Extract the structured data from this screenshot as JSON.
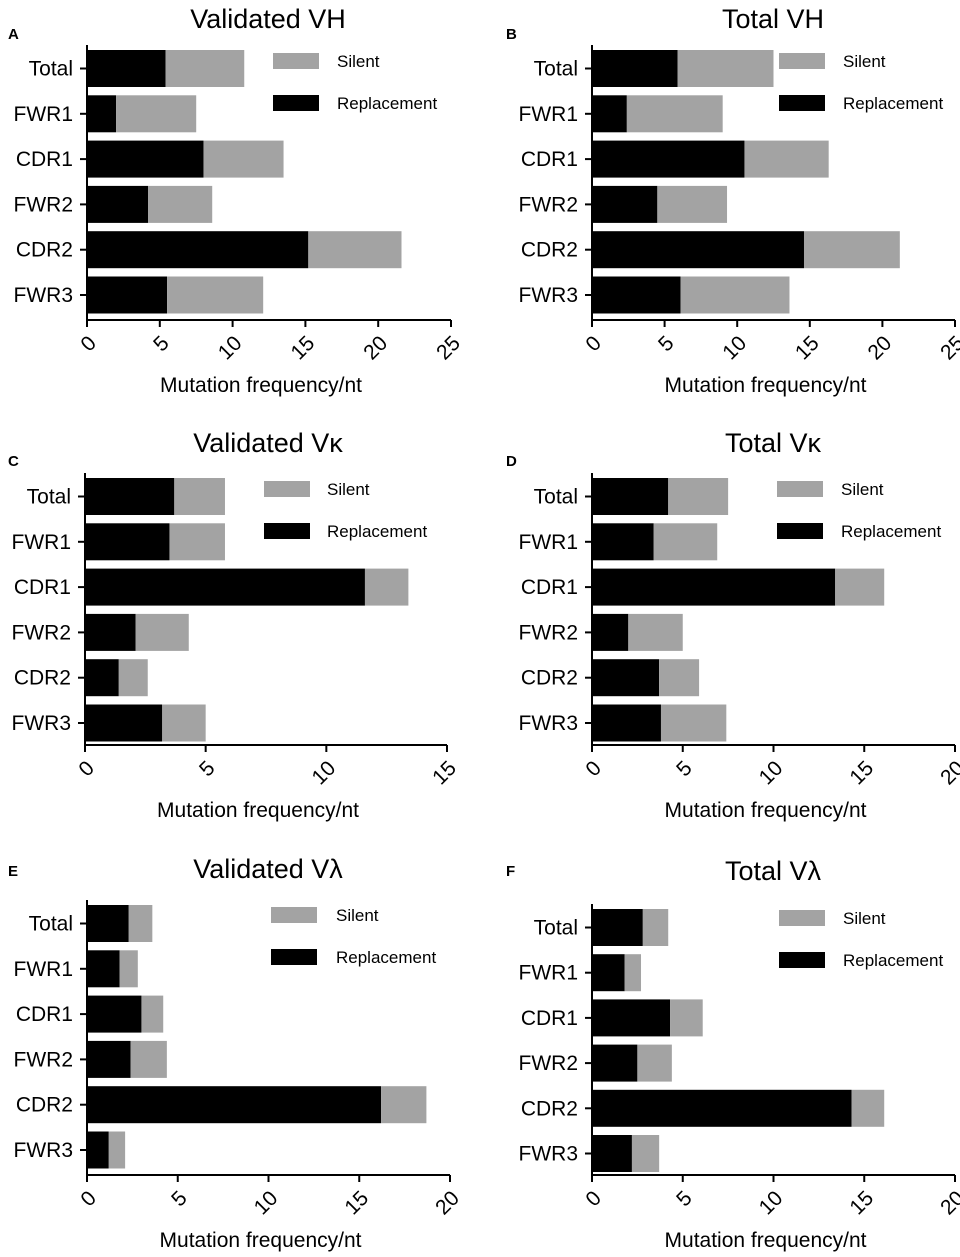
{
  "colors": {
    "replacement": "#000000",
    "silent": "#a3a3a3"
  },
  "legend": {
    "silent": "Silent",
    "replacement": "Replacement"
  },
  "chart_data": [
    {
      "panel": "A",
      "type": "bar",
      "stacked": true,
      "orientation": "horizontal",
      "title": "Validated VH",
      "xlabel": "Mutation frequency/nt",
      "ylabel": "",
      "categories": [
        "Total",
        "FWR1",
        "CDR1",
        "FWR2",
        "CDR2",
        "FWR3"
      ],
      "series": [
        {
          "name": "Replacement",
          "values": [
            5.4,
            2.0,
            8.0,
            4.2,
            15.2,
            5.5
          ]
        },
        {
          "name": "Silent",
          "values": [
            5.4,
            5.5,
            5.5,
            4.4,
            6.4,
            6.6
          ]
        }
      ],
      "xlim": [
        0,
        25
      ],
      "xticks": [
        0,
        5,
        10,
        15,
        20,
        25
      ],
      "grid": false
    },
    {
      "panel": "B",
      "type": "bar",
      "stacked": true,
      "orientation": "horizontal",
      "title": "Total VH",
      "xlabel": "Mutation frequency/nt",
      "ylabel": "",
      "categories": [
        "Total",
        "FWR1",
        "CDR1",
        "FWR2",
        "CDR2",
        "FWR3"
      ],
      "series": [
        {
          "name": "Replacement",
          "values": [
            5.9,
            2.4,
            10.5,
            4.5,
            14.6,
            6.1
          ]
        },
        {
          "name": "Silent",
          "values": [
            6.6,
            6.6,
            5.8,
            4.8,
            6.6,
            7.5
          ]
        }
      ],
      "xlim": [
        0,
        25
      ],
      "xticks": [
        0,
        5,
        10,
        15,
        20,
        25
      ],
      "grid": false
    },
    {
      "panel": "C",
      "type": "bar",
      "stacked": true,
      "orientation": "horizontal",
      "title": "Validated Vκ",
      "xlabel": "Mutation frequency/nt",
      "ylabel": "",
      "categories": [
        "Total",
        "FWR1",
        "CDR1",
        "FWR2",
        "CDR2",
        "FWR3"
      ],
      "series": [
        {
          "name": "Replacement",
          "values": [
            3.7,
            3.5,
            11.6,
            2.1,
            1.4,
            3.2
          ]
        },
        {
          "name": "Silent",
          "values": [
            2.1,
            2.3,
            1.8,
            2.2,
            1.2,
            1.8
          ]
        }
      ],
      "xlim": [
        0,
        15
      ],
      "xticks": [
        0,
        5,
        10,
        15
      ],
      "grid": false
    },
    {
      "panel": "D",
      "type": "bar",
      "stacked": true,
      "orientation": "horizontal",
      "title": "Total Vκ",
      "xlabel": "Mutation frequency/nt",
      "ylabel": "",
      "categories": [
        "Total",
        "FWR1",
        "CDR1",
        "FWR2",
        "CDR2",
        "FWR3"
      ],
      "series": [
        {
          "name": "Replacement",
          "values": [
            4.2,
            3.4,
            13.4,
            2.0,
            3.7,
            3.8
          ]
        },
        {
          "name": "Silent",
          "values": [
            3.3,
            3.5,
            2.7,
            3.0,
            2.2,
            3.6
          ]
        }
      ],
      "xlim": [
        0,
        20
      ],
      "xticks": [
        0,
        5,
        10,
        15,
        20
      ],
      "grid": false
    },
    {
      "panel": "E",
      "type": "bar",
      "stacked": true,
      "orientation": "horizontal",
      "title": "Validated  Vλ",
      "xlabel": "Mutation frequency/nt",
      "ylabel": "",
      "categories": [
        "Total",
        "FWR1",
        "CDR1",
        "FWR2",
        "CDR2",
        "FWR3"
      ],
      "series": [
        {
          "name": "Replacement",
          "values": [
            2.3,
            1.8,
            3.0,
            2.4,
            16.2,
            1.2
          ]
        },
        {
          "name": "Silent",
          "values": [
            1.3,
            1.0,
            1.2,
            2.0,
            2.5,
            0.9
          ]
        }
      ],
      "xlim": [
        0,
        20
      ],
      "xticks": [
        0,
        5,
        10,
        15,
        20
      ],
      "grid": false
    },
    {
      "panel": "F",
      "type": "bar",
      "stacked": true,
      "orientation": "horizontal",
      "title": "Total  Vλ",
      "xlabel": "Mutation frequency/nt",
      "ylabel": "",
      "categories": [
        "Total",
        "FWR1",
        "CDR1",
        "FWR2",
        "CDR2",
        "FWR3"
      ],
      "series": [
        {
          "name": "Replacement",
          "values": [
            2.8,
            1.8,
            4.3,
            2.5,
            14.3,
            2.2
          ]
        },
        {
          "name": "Silent",
          "values": [
            1.4,
            0.9,
            1.8,
            1.9,
            1.8,
            1.5
          ]
        }
      ],
      "xlim": [
        0,
        20
      ],
      "xticks": [
        0,
        5,
        10,
        15,
        20
      ],
      "grid": false
    }
  ]
}
